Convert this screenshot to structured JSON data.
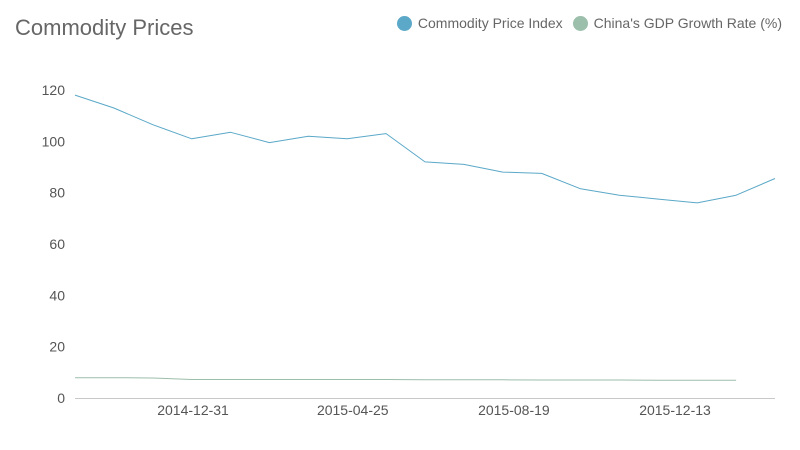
{
  "chart_data": {
    "type": "line",
    "title": "Commodity Prices",
    "xlabel": "",
    "ylabel": "",
    "ylim": [
      0,
      120
    ],
    "y_ticks": [
      0,
      20,
      40,
      60,
      80,
      100,
      120
    ],
    "x_ticks": [
      "2014-12-31",
      "2015-04-25",
      "2015-08-19",
      "2015-12-13"
    ],
    "grid": false,
    "legend_position": "top-right",
    "series": [
      {
        "name": "Commodity Price Index",
        "color": "#5ba8c8",
        "points": [
          [
            "2014-10-07",
            118
          ],
          [
            "2014-11-04",
            113
          ],
          [
            "2014-12-02",
            106.5
          ],
          [
            "2014-12-30",
            101
          ],
          [
            "2015-01-27",
            103.5
          ],
          [
            "2015-02-24",
            99.5
          ],
          [
            "2015-03-24",
            102
          ],
          [
            "2015-04-21",
            101
          ],
          [
            "2015-05-19",
            103
          ],
          [
            "2015-06-16",
            92
          ],
          [
            "2015-07-14",
            91
          ],
          [
            "2015-08-11",
            88
          ],
          [
            "2015-09-08",
            87.5
          ],
          [
            "2015-10-06",
            81.5
          ],
          [
            "2015-11-03",
            79
          ],
          [
            "2015-12-01",
            77.5
          ],
          [
            "2015-12-29",
            76
          ],
          [
            "2016-01-26",
            79
          ],
          [
            "2016-02-23",
            85.5
          ]
        ]
      },
      {
        "name": "China's GDP Growth Rate (%)",
        "color": "#9bbfaa",
        "points": [
          [
            "2014-10-07",
            7.9
          ],
          [
            "2014-11-04",
            7.9
          ],
          [
            "2014-12-02",
            7.8
          ],
          [
            "2014-12-30",
            7.2
          ],
          [
            "2015-01-27",
            7.2
          ],
          [
            "2015-02-24",
            7.2
          ],
          [
            "2015-03-24",
            7.2
          ],
          [
            "2015-04-21",
            7.2
          ],
          [
            "2015-05-19",
            7.2
          ],
          [
            "2015-06-16",
            7.1
          ],
          [
            "2015-07-14",
            7.1
          ],
          [
            "2015-08-11",
            7.1
          ],
          [
            "2015-09-08",
            7.0
          ],
          [
            "2015-10-06",
            7.0
          ],
          [
            "2015-11-03",
            7.0
          ],
          [
            "2015-12-01",
            6.9
          ],
          [
            "2015-12-29",
            6.9
          ],
          [
            "2016-01-26",
            6.9
          ]
        ]
      }
    ]
  }
}
